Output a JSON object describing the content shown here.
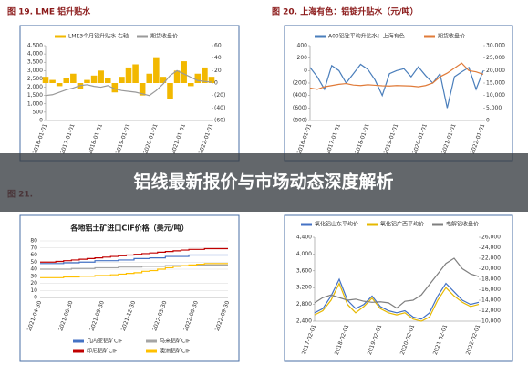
{
  "banner": {
    "title": "铝线最新报价与市场动态深度解析"
  },
  "chart_data": [
    {
      "type": "line",
      "heading": "图 19.  LME 铝升贴水",
      "categories": [
        "2016-01-01",
        null,
        null,
        null,
        "2017-01-01",
        null,
        null,
        null,
        "2018-01-01",
        null,
        null,
        null,
        "2019-01-01",
        null,
        null,
        null,
        "2020-01-01",
        null,
        null,
        null,
        "2021-01-01",
        null,
        null,
        null,
        "2022-01-01"
      ],
      "series": [
        {
          "name": "LME3个月铝升贴水 右轴",
          "type": "bar",
          "axis": "y2",
          "color": "#f2b800",
          "values": [
            10,
            5,
            -5,
            8,
            15,
            -10,
            5,
            12,
            20,
            8,
            -15,
            10,
            25,
            30,
            -20,
            15,
            40,
            10,
            -25,
            20,
            35,
            -5,
            15,
            25,
            10
          ]
        },
        {
          "name": "期货收盘价",
          "color": "#9a9a9a",
          "values": [
            1500,
            1550,
            1700,
            1850,
            1950,
            2100,
            2150,
            2050,
            2000,
            2100,
            1900,
            1800,
            1750,
            1700,
            1600,
            1500,
            1800,
            2200,
            2700,
            3000,
            2800,
            2600,
            2400,
            2350,
            2300
          ]
        }
      ],
      "ylim": [
        0,
        4500
      ],
      "yticks": [
        0,
        500,
        {
          "value": 1000,
          "label": "1,000"
        },
        {
          "value": 1500,
          "label": "1,500"
        },
        {
          "value": 2000,
          "label": "2,000"
        },
        {
          "value": 2500,
          "label": "2,500"
        },
        {
          "value": 3000,
          "label": "3,000"
        },
        {
          "value": 3500,
          "label": "3,500"
        },
        {
          "value": 4000,
          "label": "4,000"
        },
        {
          "value": 4500,
          "label": "4,500"
        }
      ],
      "y2lim": [
        -60,
        60
      ],
      "y2ticks": [
        {
          "value": -60,
          "label": "(60)"
        },
        {
          "value": -40,
          "label": "(40)"
        },
        {
          "value": -20,
          "label": "(20)"
        },
        0,
        20,
        40,
        60
      ]
    },
    {
      "type": "line",
      "heading": "图 20.  上海有色：铝锭升贴水（元/吨）",
      "categories": [
        "2016-01-01",
        null,
        null,
        null,
        "2017-01-01",
        null,
        null,
        null,
        "2018-01-01",
        null,
        null,
        null,
        "2019-01-01",
        null,
        null,
        null,
        "2020-01-01",
        null,
        null,
        null,
        "2021-01-01",
        null,
        null,
        null,
        "2022-01-01"
      ],
      "series": [
        {
          "name": "A00铝锭平均升贴水：上海有色",
          "color": "#4a7ebb",
          "values": [
            50,
            -100,
            -300,
            80,
            0,
            -200,
            -50,
            100,
            20,
            -150,
            -400,
            -50,
            0,
            30,
            -100,
            60,
            -80,
            -200,
            -50,
            -600,
            -100,
            -20,
            50,
            -300,
            0
          ]
        },
        {
          "name": "期货收盘价",
          "axis": "y2",
          "color": "#e07b39",
          "values": [
            13000,
            12500,
            13500,
            14000,
            14500,
            14800,
            14200,
            14000,
            14300,
            14100,
            13900,
            13800,
            14000,
            13900,
            13800,
            13500,
            14000,
            15000,
            17500,
            19000,
            21000,
            23000,
            20000,
            19500,
            18500
          ]
        }
      ],
      "ylim": [
        -800,
        400
      ],
      "yticks": [
        {
          "value": -800,
          "label": "(800)"
        },
        {
          "value": -600,
          "label": "(600)"
        },
        {
          "value": -400,
          "label": "(400)"
        },
        {
          "value": -200,
          "label": "(200)"
        },
        0,
        200,
        400
      ],
      "y2lim": [
        0,
        30000
      ],
      "y2ticks": [
        0,
        {
          "value": 5000,
          "label": "5,000"
        },
        {
          "value": 10000,
          "label": "10,000"
        },
        {
          "value": 15000,
          "label": "15,000"
        },
        {
          "value": 20000,
          "label": "20,000"
        },
        {
          "value": 25000,
          "label": "25,000"
        },
        {
          "value": 30000,
          "label": "30,000"
        }
      ]
    },
    {
      "type": "line",
      "heading": "图 21.",
      "title": "各地铝土矿进口CIF价格（美元/吨）",
      "step": true,
      "grid": true,
      "categories": [
        "2021-04-30",
        null,
        null,
        null,
        "2021-06-30",
        null,
        null,
        null,
        "2021-09-30",
        null,
        null,
        null,
        "2021-12-30",
        null,
        null,
        null,
        "2022-03-30",
        null,
        null,
        null,
        "2022-06-30",
        null,
        null,
        null,
        "2022-09-30"
      ],
      "series": [
        {
          "name": "几内亚铝矿CIF",
          "color": "#4472c4",
          "values": [
            48,
            48,
            48,
            49,
            49,
            50,
            50,
            52,
            52,
            52,
            53,
            53,
            55,
            55,
            56,
            56,
            58,
            58,
            58,
            60,
            60,
            60,
            60,
            60,
            60
          ]
        },
        {
          "name": "马来铝矿CIF",
          "color": "#a5a5a5",
          "values": [
            40,
            40,
            40,
            40,
            41,
            41,
            41,
            42,
            42,
            42,
            43,
            43,
            43,
            44,
            44,
            44,
            45,
            45,
            45,
            45,
            46,
            46,
            46,
            46,
            46
          ]
        },
        {
          "name": "印尼铝矿CIF",
          "color": "#c00000",
          "values": [
            50,
            50,
            51,
            52,
            53,
            54,
            55,
            56,
            57,
            58,
            59,
            60,
            61,
            62,
            63,
            64,
            65,
            66,
            67,
            68,
            68,
            69,
            69,
            69,
            69
          ]
        },
        {
          "name": "澳洲铝矿CIF",
          "color": "#ffc000",
          "values": [
            28,
            28,
            28,
            29,
            29,
            30,
            30,
            31,
            31,
            32,
            33,
            34,
            35,
            37,
            38,
            40,
            42,
            44,
            45,
            46,
            47,
            48,
            48,
            48,
            48
          ]
        }
      ],
      "ylim": [
        0,
        80
      ],
      "yticks": [
        0,
        10,
        20,
        30,
        40,
        50,
        60,
        70,
        80
      ]
    },
    {
      "type": "line",
      "categories": [
        "2017-02-01",
        null,
        null,
        null,
        "2018-02-01",
        null,
        null,
        null,
        "2019-02-01",
        null,
        null,
        null,
        "2020-02-01",
        null,
        null,
        null,
        "2021-02-01",
        null,
        null,
        null,
        "2022-02-01"
      ],
      "series": [
        {
          "name": "氧化铝山东平均价",
          "color": "#4472c4",
          "values": [
            2600,
            2700,
            3000,
            3400,
            2900,
            2700,
            2800,
            3000,
            2750,
            2650,
            2600,
            2650,
            2500,
            2450,
            2600,
            3000,
            3300,
            3100,
            2900,
            2800,
            2850
          ]
        },
        {
          "name": "氧化铝广西平均价",
          "color": "#e6b800",
          "values": [
            2550,
            2650,
            2900,
            3300,
            2800,
            2600,
            2750,
            2950,
            2700,
            2600,
            2550,
            2600,
            2450,
            2400,
            2500,
            2900,
            3200,
            3000,
            2850,
            2750,
            2800
          ]
        },
        {
          "name": "电解铝收盘价",
          "axis": "y2",
          "color": "#7f7f7f",
          "values": [
            13500,
            14500,
            15000,
            14500,
            14000,
            14200,
            13800,
            13600,
            13700,
            13500,
            12500,
            13800,
            14000,
            15000,
            17000,
            19000,
            21000,
            22000,
            20000,
            19000,
            18500
          ]
        }
      ],
      "ylim": [
        2400,
        4400
      ],
      "yticks": [
        {
          "value": 2400,
          "label": "2,400"
        },
        {
          "value": 2800,
          "label": "2,800"
        },
        {
          "value": 3200,
          "label": "3,200"
        },
        {
          "value": 3600,
          "label": "3,600"
        },
        {
          "value": 4000,
          "label": "4,000"
        },
        {
          "value": 4400,
          "label": "4,400"
        }
      ],
      "y2lim": [
        10000,
        26000
      ],
      "y2ticks": [
        {
          "value": 10000,
          "label": "10,000"
        },
        {
          "value": 12000,
          "label": "12,000"
        },
        {
          "value": 14000,
          "label": "14,000"
        },
        {
          "value": 16000,
          "label": "16,000"
        },
        {
          "value": 18000,
          "label": "18,000"
        },
        {
          "value": 20000,
          "label": "20,000"
        },
        {
          "value": 22000,
          "label": "22,000"
        },
        {
          "value": 24000,
          "label": "24,000"
        },
        {
          "value": 26000,
          "label": "26,000"
        }
      ]
    }
  ]
}
